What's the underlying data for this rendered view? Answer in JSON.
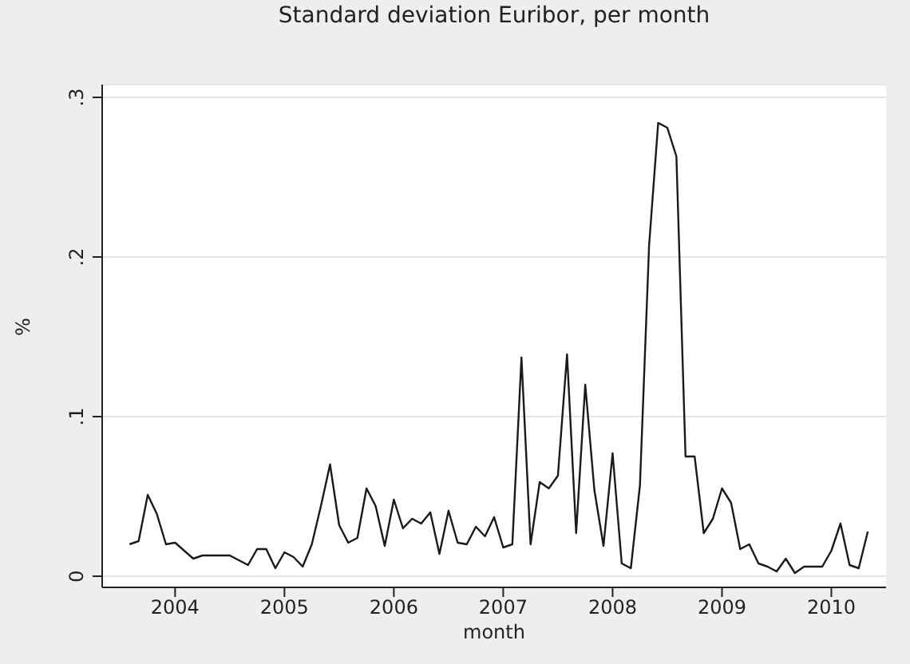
{
  "chart_data": {
    "type": "line",
    "title": "Standard deviation Euribor, per month",
    "xlabel": "month",
    "ylabel": "%",
    "x": [
      "2003-08",
      "2003-09",
      "2003-10",
      "2003-11",
      "2003-12",
      "2004-01",
      "2004-02",
      "2004-03",
      "2004-04",
      "2004-05",
      "2004-06",
      "2004-07",
      "2004-08",
      "2004-09",
      "2004-10",
      "2004-11",
      "2004-12",
      "2005-01",
      "2005-02",
      "2005-03",
      "2005-04",
      "2005-05",
      "2005-06",
      "2005-07",
      "2005-08",
      "2005-09",
      "2005-10",
      "2005-11",
      "2005-12",
      "2006-01",
      "2006-02",
      "2006-03",
      "2006-04",
      "2006-05",
      "2006-06",
      "2006-07",
      "2006-08",
      "2006-09",
      "2006-10",
      "2006-11",
      "2006-12",
      "2007-01",
      "2007-02",
      "2007-03",
      "2007-04",
      "2007-05",
      "2007-06",
      "2007-07",
      "2007-08",
      "2007-09",
      "2007-10",
      "2007-11",
      "2007-12",
      "2008-01",
      "2008-02",
      "2008-03",
      "2008-04",
      "2008-05",
      "2008-06",
      "2008-07",
      "2008-08",
      "2008-09",
      "2008-10",
      "2008-11",
      "2008-12",
      "2009-01",
      "2009-02",
      "2009-03",
      "2009-04",
      "2009-05",
      "2009-06",
      "2009-07",
      "2009-08",
      "2009-09",
      "2009-10",
      "2009-11",
      "2009-12",
      "2010-01",
      "2010-02",
      "2010-03",
      "2010-04",
      "2010-05"
    ],
    "series": [
      {
        "color": "#1a1a1a",
        "values": [
          0.02,
          0.022,
          0.051,
          0.039,
          0.02,
          0.021,
          0.016,
          0.011,
          0.013,
          0.013,
          0.013,
          0.013,
          0.01,
          0.007,
          0.017,
          0.017,
          0.005,
          0.015,
          0.012,
          0.006,
          0.02,
          0.044,
          0.07,
          0.032,
          0.021,
          0.024,
          0.055,
          0.044,
          0.019,
          0.048,
          0.03,
          0.036,
          0.033,
          0.04,
          0.014,
          0.041,
          0.021,
          0.02,
          0.031,
          0.025,
          0.037,
          0.018,
          0.02,
          0.137,
          0.02,
          0.059,
          0.055,
          0.063,
          0.139,
          0.027,
          0.12,
          0.054,
          0.019,
          0.077,
          0.008,
          0.005,
          0.057,
          0.207,
          0.284,
          0.281,
          0.263,
          0.075,
          0.075,
          0.027,
          0.036,
          0.055,
          0.046,
          0.017,
          0.02,
          0.008,
          0.006,
          0.003,
          0.011,
          0.002,
          0.006,
          0.006,
          0.006,
          0.016,
          0.033,
          0.007,
          0.005,
          0.028
        ]
      }
    ],
    "xlim": [
      "2003-05",
      "2010-07"
    ],
    "xticks": [
      {
        "value": "2004-01",
        "label": "2004"
      },
      {
        "value": "2005-01",
        "label": "2005"
      },
      {
        "value": "2006-01",
        "label": "2006"
      },
      {
        "value": "2007-01",
        "label": "2007"
      },
      {
        "value": "2008-01",
        "label": "2008"
      },
      {
        "value": "2009-01",
        "label": "2009"
      },
      {
        "value": "2010-01",
        "label": "2010"
      }
    ],
    "ylim": [
      -0.007,
      0.308
    ],
    "yticks": [
      0,
      {
        "value": 0.1,
        "label": ".1"
      },
      {
        "value": 0.2,
        "label": ".2"
      },
      {
        "value": 0.3,
        "label": ".3"
      }
    ],
    "grid": "y",
    "legend": false,
    "marker": "none",
    "line_style": "solid"
  }
}
